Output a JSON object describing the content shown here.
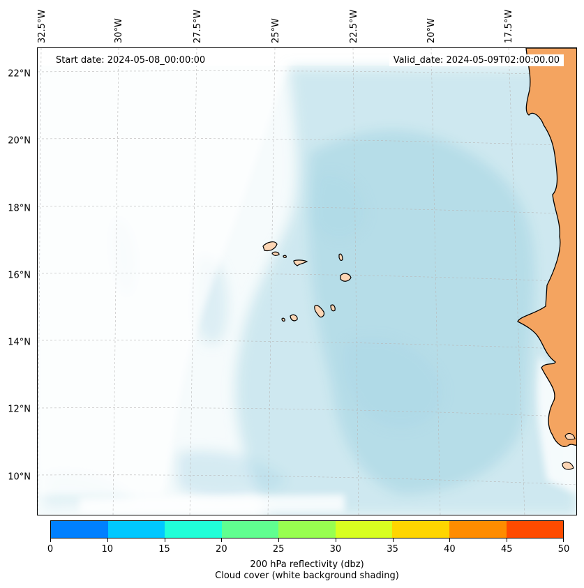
{
  "header": {
    "start_date": "Start date: 2024-05-08_00:00:00",
    "valid_date": "Valid_date: 2024-05-09T02:00:00.00"
  },
  "axes": {
    "longitudes": [
      "32.5°W",
      "30°W",
      "27.5°W",
      "25°W",
      "22.5°W",
      "20°W",
      "17.5°W"
    ],
    "latitudes": [
      "22°N",
      "20°N",
      "18°N",
      "16°N",
      "14°N",
      "12°N",
      "10°N"
    ]
  },
  "colorbar": {
    "ticks": [
      "0",
      "10",
      "15",
      "20",
      "25",
      "30",
      "35",
      "40",
      "45",
      "50"
    ],
    "colors": [
      "#0080ff",
      "#00c8ff",
      "#20ffd8",
      "#60ff90",
      "#98ff50",
      "#d8ff20",
      "#ffd500",
      "#ff8c00",
      "#ff4b00"
    ],
    "label_line1": "200 hPa reflectivity (dbz)",
    "label_line2": "Cloud cover (white background shading)"
  },
  "map_colors": {
    "cloud": "#add8e6",
    "land_light": "#fcd5b4",
    "land": "#f4a460",
    "coast": "#000000"
  }
}
